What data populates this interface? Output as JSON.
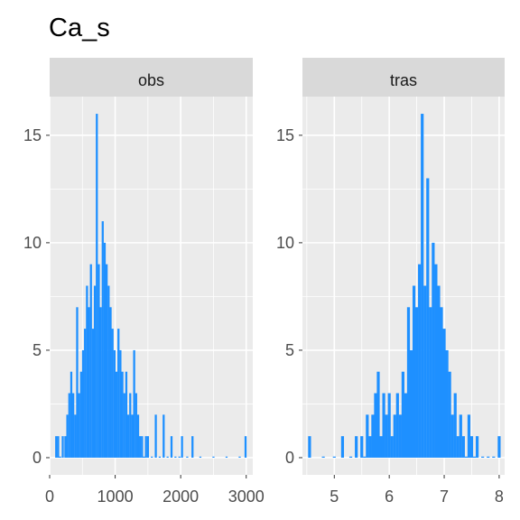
{
  "chart_data": {
    "type": "bar",
    "title": "Ca_s",
    "xlabel": "",
    "ylabel": "",
    "grid": true,
    "bar_color": "#1E90FF",
    "panel_bg": "#EBEBEB",
    "strip_bg": "#D9D9D9",
    "ylim": [
      -0.8,
      16.8
    ],
    "yticks": [
      0,
      5,
      10,
      15
    ],
    "facets": [
      {
        "label": "obs",
        "xlim": [
          0,
          3100
        ],
        "xticks": [
          0,
          1000,
          2000,
          3000
        ],
        "xtick_labels": [
          "0",
          "1000",
          "2000",
          "3000"
        ],
        "x_minor": [
          500,
          1500,
          2500
        ],
        "bins": [
          {
            "x": 100,
            "y": 1
          },
          {
            "x": 130,
            "y": 1
          },
          {
            "x": 160,
            "y": 0
          },
          {
            "x": 200,
            "y": 1
          },
          {
            "x": 240,
            "y": 1
          },
          {
            "x": 270,
            "y": 2
          },
          {
            "x": 300,
            "y": 3
          },
          {
            "x": 330,
            "y": 4
          },
          {
            "x": 360,
            "y": 3
          },
          {
            "x": 390,
            "y": 2
          },
          {
            "x": 420,
            "y": 7
          },
          {
            "x": 450,
            "y": 3
          },
          {
            "x": 480,
            "y": 4
          },
          {
            "x": 510,
            "y": 5
          },
          {
            "x": 540,
            "y": 6
          },
          {
            "x": 570,
            "y": 8
          },
          {
            "x": 600,
            "y": 7
          },
          {
            "x": 630,
            "y": 9
          },
          {
            "x": 660,
            "y": 6
          },
          {
            "x": 690,
            "y": 8
          },
          {
            "x": 720,
            "y": 16
          },
          {
            "x": 750,
            "y": 9
          },
          {
            "x": 780,
            "y": 7
          },
          {
            "x": 810,
            "y": 11
          },
          {
            "x": 840,
            "y": 10
          },
          {
            "x": 870,
            "y": 9
          },
          {
            "x": 900,
            "y": 8
          },
          {
            "x": 930,
            "y": 7
          },
          {
            "x": 960,
            "y": 6
          },
          {
            "x": 990,
            "y": 5
          },
          {
            "x": 1020,
            "y": 4
          },
          {
            "x": 1050,
            "y": 6
          },
          {
            "x": 1080,
            "y": 5
          },
          {
            "x": 1110,
            "y": 4
          },
          {
            "x": 1140,
            "y": 3
          },
          {
            "x": 1170,
            "y": 4
          },
          {
            "x": 1200,
            "y": 2
          },
          {
            "x": 1230,
            "y": 3
          },
          {
            "x": 1260,
            "y": 2
          },
          {
            "x": 1290,
            "y": 5
          },
          {
            "x": 1320,
            "y": 3
          },
          {
            "x": 1350,
            "y": 2
          },
          {
            "x": 1380,
            "y": 1
          },
          {
            "x": 1410,
            "y": 1
          },
          {
            "x": 1440,
            "y": 0
          },
          {
            "x": 1470,
            "y": 1
          },
          {
            "x": 1500,
            "y": 1
          },
          {
            "x": 1560,
            "y": 0
          },
          {
            "x": 1620,
            "y": 2
          },
          {
            "x": 1680,
            "y": 0
          },
          {
            "x": 1740,
            "y": 2
          },
          {
            "x": 1800,
            "y": 0
          },
          {
            "x": 1860,
            "y": 1
          },
          {
            "x": 1920,
            "y": 0
          },
          {
            "x": 1980,
            "y": 0
          },
          {
            "x": 2020,
            "y": 1
          },
          {
            "x": 2100,
            "y": 0
          },
          {
            "x": 2180,
            "y": 1
          },
          {
            "x": 2300,
            "y": 0
          },
          {
            "x": 2500,
            "y": 0
          },
          {
            "x": 2700,
            "y": 0
          },
          {
            "x": 2900,
            "y": 0
          },
          {
            "x": 2990,
            "y": 1
          }
        ]
      },
      {
        "label": "tras",
        "xlim": [
          4.42,
          8.1
        ],
        "xticks": [
          5,
          6,
          7,
          8
        ],
        "xtick_labels": [
          "5",
          "6",
          "7",
          "8"
        ],
        "x_minor": [
          4.5,
          5.5,
          6.5,
          7.5
        ],
        "bins": [
          {
            "x": 4.55,
            "y": 1
          },
          {
            "x": 4.8,
            "y": 0
          },
          {
            "x": 5.0,
            "y": 0
          },
          {
            "x": 5.15,
            "y": 1
          },
          {
            "x": 5.3,
            "y": 0
          },
          {
            "x": 5.4,
            "y": 1
          },
          {
            "x": 5.5,
            "y": 1
          },
          {
            "x": 5.55,
            "y": 0
          },
          {
            "x": 5.6,
            "y": 2
          },
          {
            "x": 5.65,
            "y": 1
          },
          {
            "x": 5.7,
            "y": 2
          },
          {
            "x": 5.75,
            "y": 3
          },
          {
            "x": 5.8,
            "y": 4
          },
          {
            "x": 5.85,
            "y": 1
          },
          {
            "x": 5.9,
            "y": 3
          },
          {
            "x": 5.95,
            "y": 2
          },
          {
            "x": 6.0,
            "y": 3
          },
          {
            "x": 6.05,
            "y": 1
          },
          {
            "x": 6.1,
            "y": 2
          },
          {
            "x": 6.15,
            "y": 3
          },
          {
            "x": 6.2,
            "y": 2
          },
          {
            "x": 6.25,
            "y": 4
          },
          {
            "x": 6.3,
            "y": 3
          },
          {
            "x": 6.35,
            "y": 7
          },
          {
            "x": 6.4,
            "y": 5
          },
          {
            "x": 6.45,
            "y": 8
          },
          {
            "x": 6.5,
            "y": 7
          },
          {
            "x": 6.55,
            "y": 9
          },
          {
            "x": 6.6,
            "y": 16
          },
          {
            "x": 6.65,
            "y": 8
          },
          {
            "x": 6.7,
            "y": 13
          },
          {
            "x": 6.75,
            "y": 7
          },
          {
            "x": 6.8,
            "y": 10
          },
          {
            "x": 6.85,
            "y": 9
          },
          {
            "x": 6.9,
            "y": 8
          },
          {
            "x": 6.95,
            "y": 7
          },
          {
            "x": 7.0,
            "y": 6
          },
          {
            "x": 7.05,
            "y": 5
          },
          {
            "x": 7.1,
            "y": 4
          },
          {
            "x": 7.15,
            "y": 2
          },
          {
            "x": 7.2,
            "y": 3
          },
          {
            "x": 7.25,
            "y": 1
          },
          {
            "x": 7.3,
            "y": 2
          },
          {
            "x": 7.35,
            "y": 1
          },
          {
            "x": 7.4,
            "y": 0
          },
          {
            "x": 7.45,
            "y": 2
          },
          {
            "x": 7.5,
            "y": 1
          },
          {
            "x": 7.55,
            "y": 0
          },
          {
            "x": 7.6,
            "y": 1
          },
          {
            "x": 7.7,
            "y": 0
          },
          {
            "x": 7.8,
            "y": 0
          },
          {
            "x": 7.9,
            "y": 0
          },
          {
            "x": 8.0,
            "y": 1
          }
        ]
      }
    ]
  }
}
